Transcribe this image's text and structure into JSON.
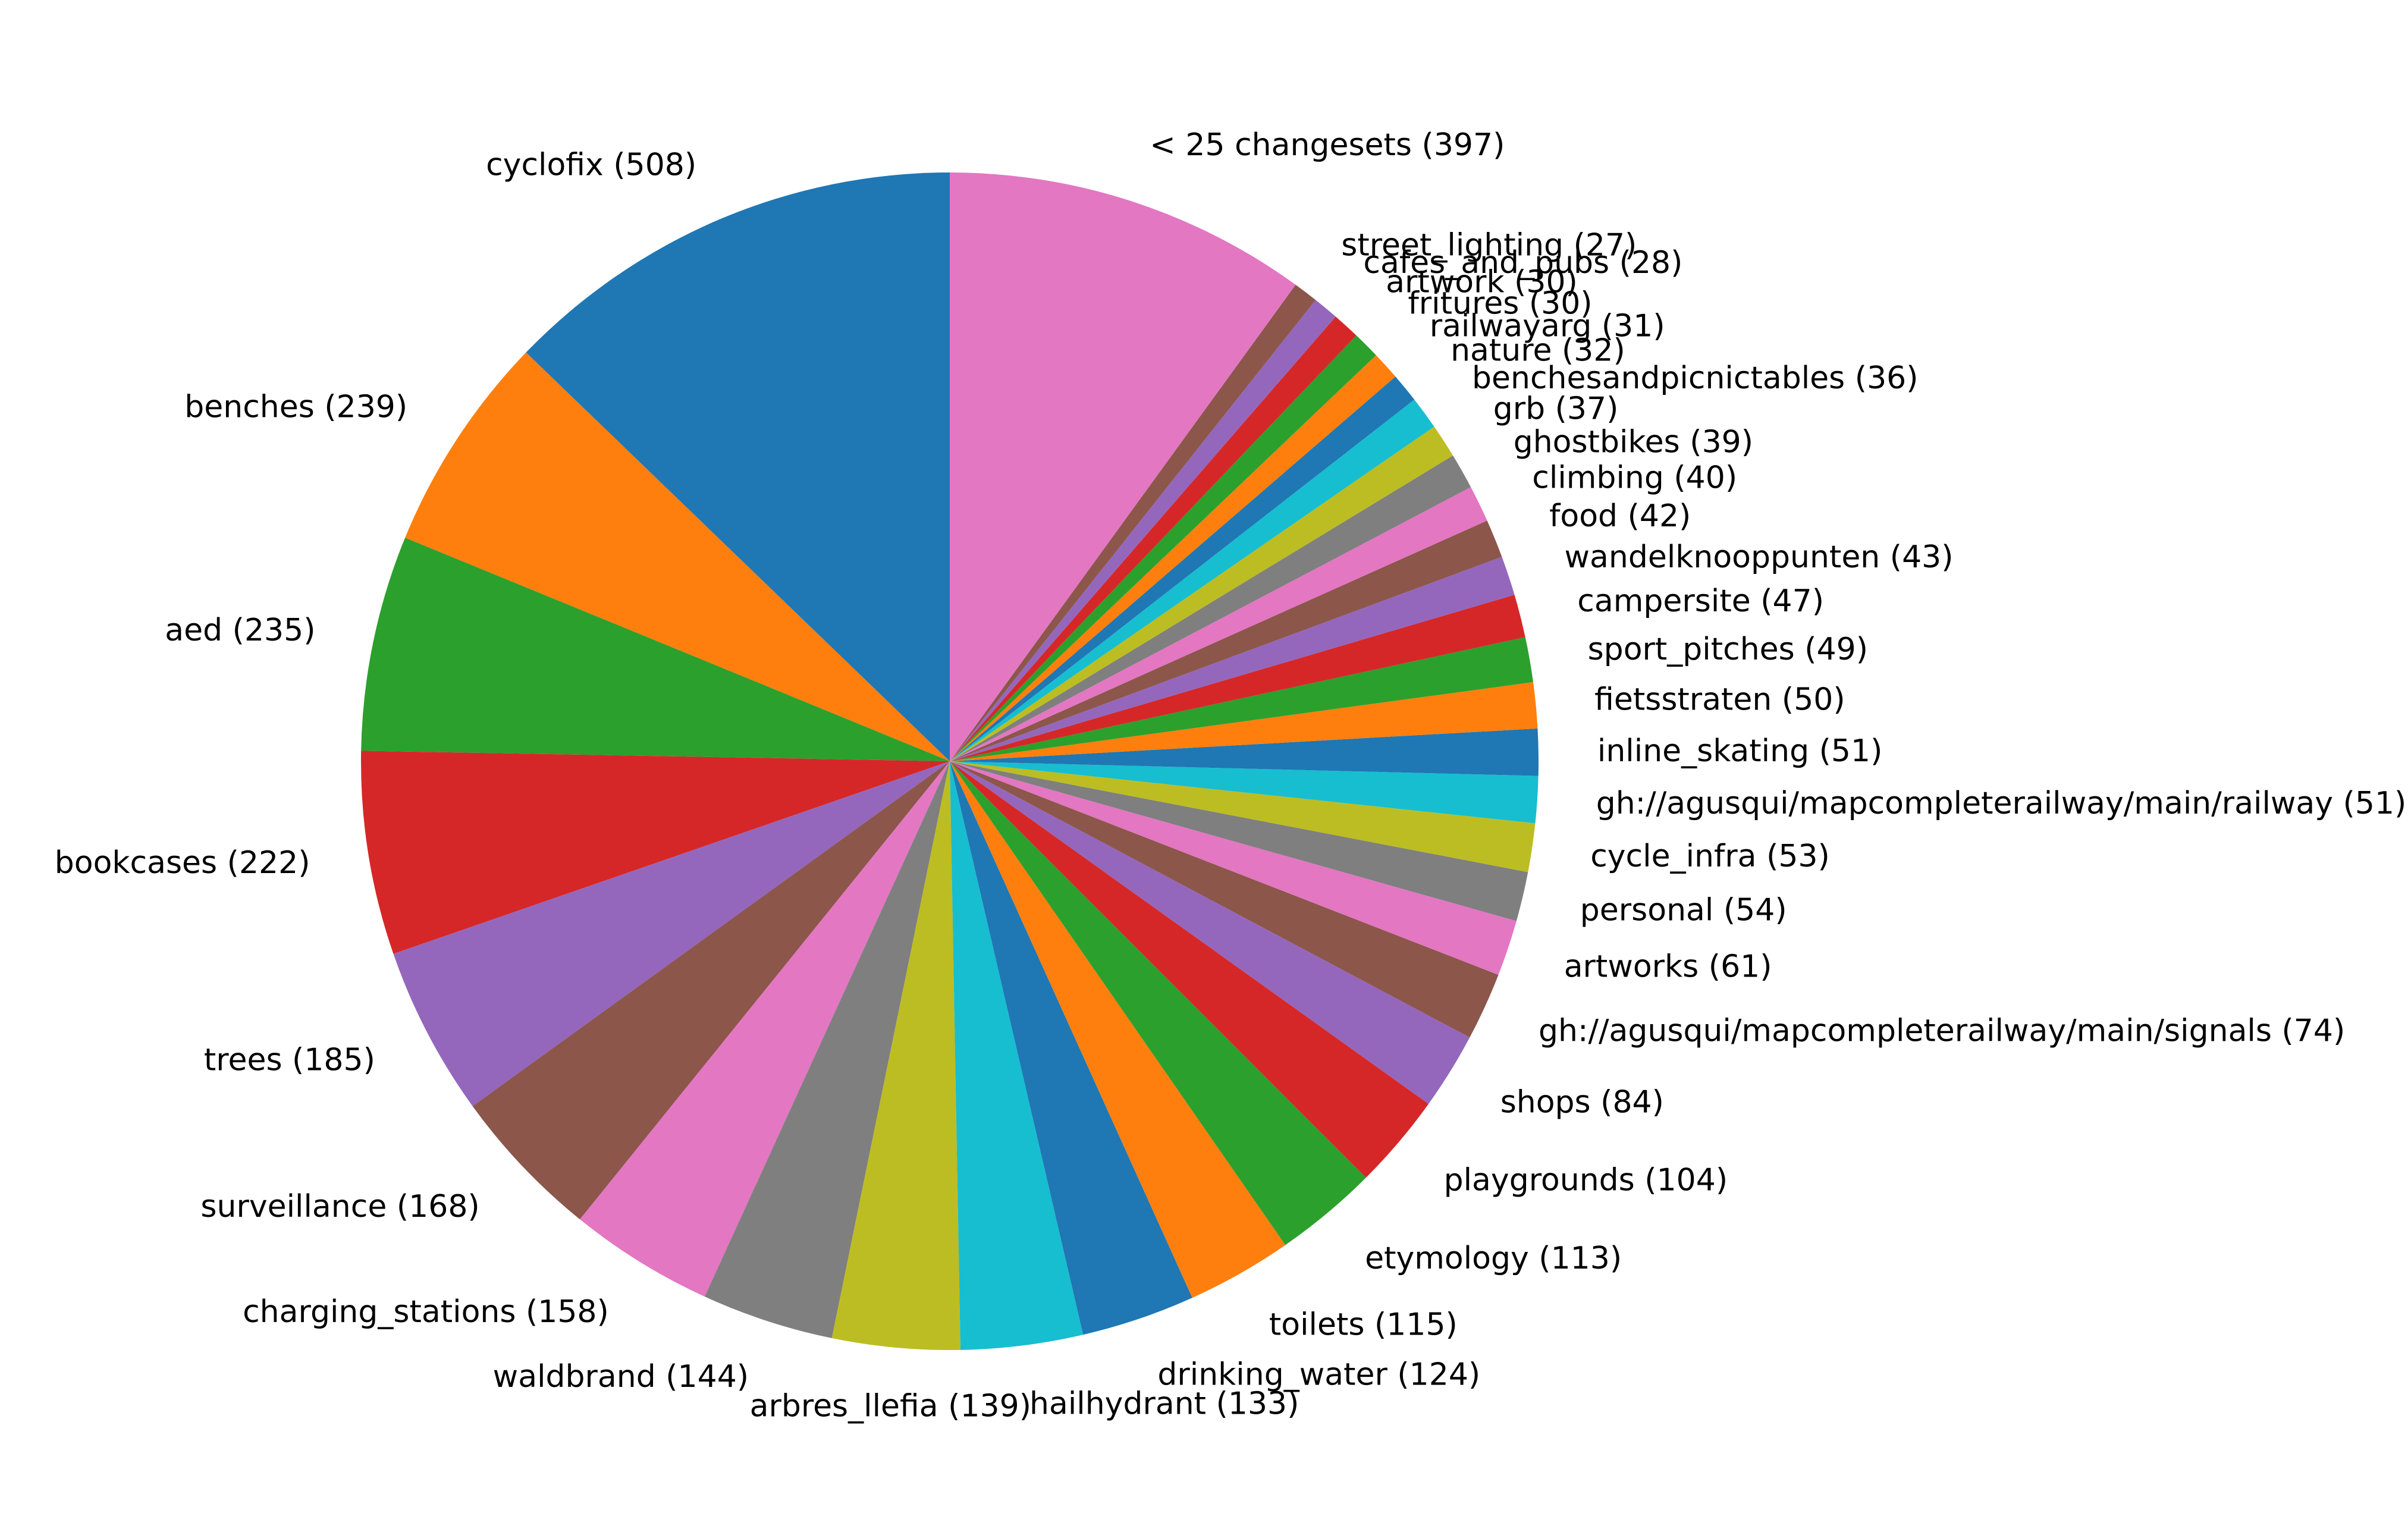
{
  "chart_data": {
    "type": "pie",
    "title": "",
    "start_angle_deg": 90,
    "direction": "counterclockwise",
    "legend": "none",
    "slices": [
      {
        "name": "cyclofix",
        "label": "cyclofix (508)",
        "value": 508,
        "color": "#1f77b4"
      },
      {
        "name": "benches",
        "label": "benches (239)",
        "value": 239,
        "color": "#ff7f0e"
      },
      {
        "name": "aed",
        "label": "aed (235)",
        "value": 235,
        "color": "#2ca02c"
      },
      {
        "name": "bookcases",
        "label": "bookcases (222)",
        "value": 222,
        "color": "#d62728"
      },
      {
        "name": "trees",
        "label": "trees (185)",
        "value": 185,
        "color": "#9467bd"
      },
      {
        "name": "surveillance",
        "label": "surveillance (168)",
        "value": 168,
        "color": "#8c564b"
      },
      {
        "name": "charging_stations",
        "label": "charging_stations (158)",
        "value": 158,
        "color": "#e377c2"
      },
      {
        "name": "waldbrand",
        "label": "waldbrand (144)",
        "value": 144,
        "color": "#7f7f7f"
      },
      {
        "name": "arbres_llefia",
        "label": "arbres_llefia (139)",
        "value": 139,
        "color": "#bcbd22"
      },
      {
        "name": "hailhydrant",
        "label": "hailhydrant (133)",
        "value": 133,
        "color": "#17becf"
      },
      {
        "name": "drinking_water",
        "label": "drinking_water (124)",
        "value": 124,
        "color": "#1f77b4"
      },
      {
        "name": "toilets",
        "label": "toilets (115)",
        "value": 115,
        "color": "#ff7f0e"
      },
      {
        "name": "etymology",
        "label": "etymology (113)",
        "value": 113,
        "color": "#2ca02c"
      },
      {
        "name": "playgrounds",
        "label": "playgrounds (104)",
        "value": 104,
        "color": "#d62728"
      },
      {
        "name": "shops",
        "label": "shops (84)",
        "value": 84,
        "color": "#9467bd"
      },
      {
        "name": "signals",
        "label": "gh://agusqui/mapcompleterailway/main/signals (74)",
        "value": 74,
        "color": "#8c564b"
      },
      {
        "name": "artworks",
        "label": "artworks (61)",
        "value": 61,
        "color": "#e377c2"
      },
      {
        "name": "personal",
        "label": "personal (54)",
        "value": 54,
        "color": "#7f7f7f"
      },
      {
        "name": "cycle_infra",
        "label": "cycle_infra (53)",
        "value": 53,
        "color": "#bcbd22"
      },
      {
        "name": "railway",
        "label": "gh://agusqui/mapcompleterailway/main/railway (51)",
        "value": 51,
        "color": "#17becf"
      },
      {
        "name": "inline_skating",
        "label": "inline_skating (51)",
        "value": 51,
        "color": "#1f77b4"
      },
      {
        "name": "fietsstraten",
        "label": "fietsstraten (50)",
        "value": 50,
        "color": "#ff7f0e"
      },
      {
        "name": "sport_pitches",
        "label": "sport_pitches (49)",
        "value": 49,
        "color": "#2ca02c"
      },
      {
        "name": "campersite",
        "label": "campersite (47)",
        "value": 47,
        "color": "#d62728"
      },
      {
        "name": "wandelknooppunten",
        "label": "wandelknooppunten (43)",
        "value": 43,
        "color": "#9467bd"
      },
      {
        "name": "food",
        "label": "food (42)",
        "value": 42,
        "color": "#8c564b"
      },
      {
        "name": "climbing",
        "label": "climbing (40)",
        "value": 40,
        "color": "#e377c2"
      },
      {
        "name": "ghostbikes",
        "label": "ghostbikes (39)",
        "value": 39,
        "color": "#7f7f7f"
      },
      {
        "name": "grb",
        "label": "grb (37)",
        "value": 37,
        "color": "#bcbd22"
      },
      {
        "name": "benchesandpicnictables",
        "label": "benchesandpicnictables (36)",
        "value": 36,
        "color": "#17becf"
      },
      {
        "name": "nature",
        "label": "nature (32)",
        "value": 32,
        "color": "#1f77b4"
      },
      {
        "name": "railwayarg",
        "label": "railwayarg (31)",
        "value": 31,
        "color": "#ff7f0e"
      },
      {
        "name": "fritures",
        "label": "fritures (30)",
        "value": 30,
        "color": "#2ca02c"
      },
      {
        "name": "artwork",
        "label": "artwork (30)",
        "value": 30,
        "color": "#d62728"
      },
      {
        "name": "cafes_and_pubs",
        "label": "cafes_and_pubs (28)",
        "value": 28,
        "color": "#9467bd"
      },
      {
        "name": "street_lighting",
        "label": "street_lighting (27)",
        "value": 27,
        "color": "#8c564b"
      },
      {
        "name": "lt25",
        "label": "< 25 changesets (397)",
        "value": 397,
        "color": "#e377c2"
      }
    ]
  }
}
